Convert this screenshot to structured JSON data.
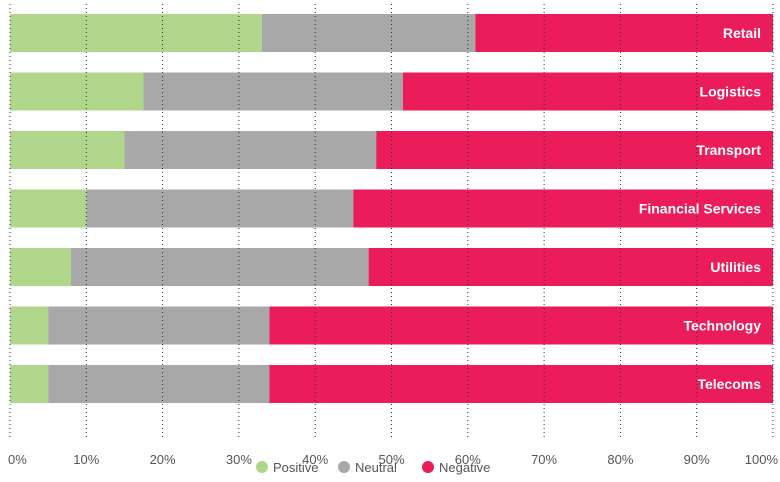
{
  "chart_data": {
    "type": "bar",
    "orientation": "horizontal",
    "stacked": true,
    "categories": [
      "Retail",
      "Logistics",
      "Transport",
      "Financial Services",
      "Utilities",
      "Technology",
      "Telecoms"
    ],
    "series": [
      {
        "name": "Positive",
        "color": "#b0d68c",
        "values": [
          33,
          17.5,
          15,
          10,
          8,
          5,
          5
        ]
      },
      {
        "name": "Neutral",
        "color": "#a8a8a8",
        "values": [
          28,
          34,
          33,
          35,
          39,
          29,
          29
        ]
      },
      {
        "name": "Negative",
        "color": "#ea1c5a",
        "values": [
          39,
          48.5,
          52,
          55,
          53,
          66,
          66
        ]
      }
    ],
    "xlim": [
      0,
      100
    ],
    "x_ticks": [
      "0%",
      "10%",
      "20%",
      "30%",
      "40%",
      "50%",
      "60%",
      "70%",
      "80%",
      "90%",
      "100%"
    ],
    "grid": "vertical dotted",
    "legend_position": "bottom-center"
  }
}
